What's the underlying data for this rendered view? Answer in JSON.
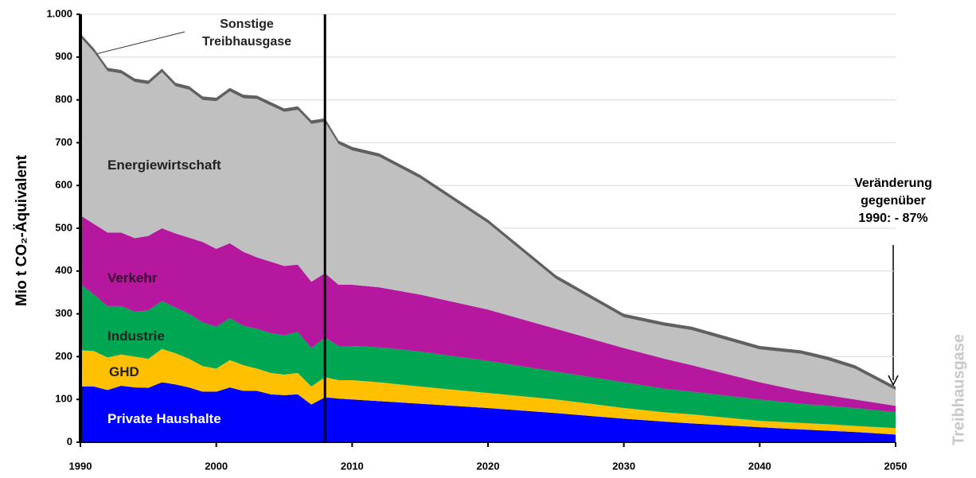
{
  "chart_data": {
    "type": "stacked_area",
    "y_label": "Mio t CO₂-Äquivalent",
    "right_label": "Treibhausgase",
    "x": [
      1990,
      1991,
      1992,
      1993,
      1994,
      1995,
      1996,
      1997,
      1998,
      1999,
      2000,
      2001,
      2002,
      2003,
      2004,
      2005,
      2006,
      2007,
      2008,
      2009,
      2010,
      2012,
      2015,
      2020,
      2025,
      2030,
      2033,
      2035,
      2040,
      2043,
      2045,
      2047,
      2050
    ],
    "series": [
      {
        "name": "Private Haushalte",
        "color": "#0000ff",
        "values": [
          130,
          130,
          122,
          132,
          128,
          127,
          140,
          135,
          128,
          118,
          118,
          128,
          120,
          120,
          112,
          110,
          112,
          88,
          105,
          102,
          100,
          96,
          90,
          80,
          68,
          55,
          48,
          44,
          35,
          30,
          27,
          24,
          18
        ]
      },
      {
        "name": "GHD",
        "color": "#ffc000",
        "values": [
          85,
          83,
          76,
          73,
          72,
          68,
          78,
          73,
          67,
          60,
          54,
          64,
          60,
          52,
          50,
          48,
          50,
          42,
          47,
          43,
          45,
          44,
          40,
          35,
          32,
          25,
          22,
          21,
          15,
          15,
          15,
          14,
          15
        ]
      },
      {
        "name": "Industrie",
        "color": "#00a651",
        "values": [
          155,
          132,
          120,
          113,
          105,
          113,
          112,
          107,
          105,
          102,
          98,
          98,
          92,
          93,
          93,
          92,
          96,
          90,
          93,
          80,
          80,
          82,
          82,
          75,
          65,
          60,
          55,
          53,
          50,
          45,
          43,
          42,
          37
        ]
      },
      {
        "name": "Verkehr",
        "color": "#b5179e",
        "values": [
          160,
          165,
          172,
          172,
          172,
          174,
          170,
          173,
          178,
          188,
          182,
          175,
          173,
          167,
          167,
          162,
          157,
          155,
          150,
          143,
          143,
          140,
          133,
          120,
          100,
          80,
          70,
          62,
          40,
          30,
          25,
          20,
          15
        ]
      },
      {
        "name": "Energiewirtschaft",
        "color": "#c0c0c0",
        "values": [
          417,
          402,
          377,
          372,
          365,
          355,
          365,
          344,
          346,
          332,
          345,
          355,
          359,
          370,
          365,
          360,
          362,
          369,
          354,
          329,
          314,
          305,
          272,
          202,
          117,
          72,
          77,
          82,
          77,
          87,
          82,
          72,
          37
        ]
      },
      {
        "name": "Sonstige Treibhausgase",
        "color": "#606060",
        "values": [
          8,
          8,
          8,
          8,
          8,
          8,
          8,
          8,
          8,
          8,
          8,
          8,
          8,
          8,
          8,
          8,
          8,
          8,
          8,
          8,
          8,
          8,
          8,
          8,
          8,
          8,
          8,
          8,
          8,
          8,
          8,
          8,
          8
        ]
      }
    ],
    "vline_x": 2008,
    "annotation": [
      "Veränderung",
      "gegenüber",
      "1990: - 87%"
    ],
    "xlim": [
      1990,
      2050
    ],
    "xticks": [
      1990,
      2000,
      2010,
      2020,
      2030,
      2040,
      2050
    ],
    "ylim": [
      0,
      1000
    ],
    "yticks": [
      0,
      100,
      200,
      300,
      400,
      500,
      600,
      700,
      800,
      900,
      {
        "value": 1000,
        "label": "1.000"
      }
    ],
    "grid": true
  }
}
